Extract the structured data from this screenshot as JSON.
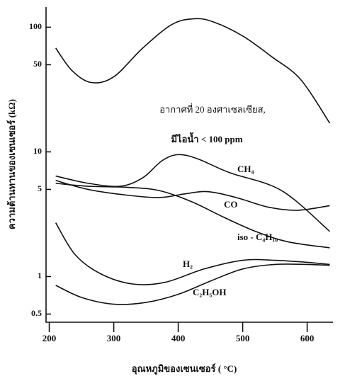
{
  "chart_data": {
    "type": "line",
    "x_label": "อุณหภูมิของเซนเซอร์ ( °C)",
    "y_label": "ความต้านทานของเซนเซอร์ (kΩ)",
    "annotations": [
      "อากาศที่ 20 องศาเซลเซียส,",
      "มีไอน้ำ < 100 ppm"
    ],
    "log_y": true,
    "xlim": [
      195,
      640
    ],
    "xticks": [
      200,
      300,
      400,
      500,
      600
    ],
    "ylim": [
      0.43,
      145
    ],
    "yticks": [
      0.5,
      1,
      5,
      10,
      50,
      100
    ],
    "series": [
      {
        "name": "อากาศที่ 20 องศาเซลเซียส,",
        "color": "#111111",
        "x": [
          210,
          235,
          265,
          300,
          345,
          390,
          425,
          455,
          500,
          545,
          590,
          635
        ],
        "values": [
          68,
          45,
          36,
          40,
          68,
          105,
          117,
          110,
          85,
          58,
          38,
          17
        ]
      },
      {
        "name": "CH₄",
        "color": "#111111",
        "x": [
          210,
          260,
          310,
          345,
          375,
          400,
          430,
          480,
          560,
          635
        ],
        "values": [
          6.4,
          5.6,
          5.3,
          6.2,
          8.5,
          9.5,
          8.8,
          6.8,
          4.9,
          2.3
        ]
      },
      {
        "name": "CO",
        "color": "#111111",
        "x": [
          210,
          260,
          320,
          370,
          410,
          445,
          490,
          540,
          585,
          635
        ],
        "values": [
          5.9,
          5.0,
          4.5,
          4.3,
          4.6,
          4.8,
          4.3,
          3.6,
          3.4,
          3.7
        ]
      },
      {
        "name": "iso - C₄H₁₀",
        "color": "#111111",
        "x": [
          210,
          260,
          320,
          370,
          420,
          470,
          520,
          570,
          635
        ],
        "values": [
          5.6,
          5.3,
          5.2,
          4.9,
          4.0,
          3.0,
          2.3,
          1.9,
          1.7
        ]
      },
      {
        "name": "H₂",
        "color": "#111111",
        "x": [
          210,
          240,
          280,
          330,
          380,
          440,
          500,
          550,
          600,
          635
        ],
        "values": [
          2.7,
          1.5,
          1.05,
          0.87,
          0.9,
          1.15,
          1.35,
          1.35,
          1.3,
          1.25
        ]
      },
      {
        "name": "C₂H₅OH",
        "color": "#111111",
        "x": [
          210,
          250,
          300,
          350,
          400,
          450,
          500,
          550,
          600,
          635
        ],
        "values": [
          0.85,
          0.68,
          0.6,
          0.62,
          0.72,
          0.92,
          1.15,
          1.25,
          1.25,
          1.23
        ]
      }
    ]
  }
}
